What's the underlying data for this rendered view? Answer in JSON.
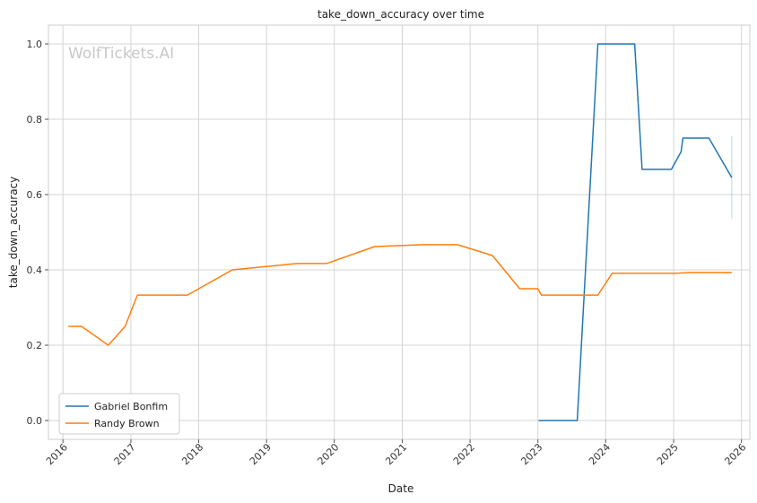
{
  "chart_data": {
    "type": "line",
    "title": "take_down_accuracy over time",
    "xlabel": "Date",
    "ylabel": "take_down_accuracy",
    "watermark": "WolfTickets.AI",
    "xlim": [
      "2015-10-15",
      "2026-02-15"
    ],
    "ylim": [
      -0.05,
      1.05
    ],
    "x_ticks": [
      "2016",
      "2017",
      "2018",
      "2019",
      "2020",
      "2021",
      "2022",
      "2023",
      "2024",
      "2025",
      "2026"
    ],
    "y_ticks": [
      "0.0",
      "0.2",
      "0.4",
      "0.6",
      "0.8",
      "1.0"
    ],
    "grid": true,
    "legend_position": "lower-left",
    "series": [
      {
        "name": "Gabriel Bonfim",
        "color": "#1f77b4",
        "points": [
          [
            "2023-01-05",
            0.0
          ],
          [
            "2023-08-01",
            0.0
          ],
          [
            "2023-11-20",
            1.0
          ],
          [
            "2024-06-05",
            1.0
          ],
          [
            "2024-07-15",
            0.667
          ],
          [
            "2024-12-20",
            0.667
          ],
          [
            "2025-02-10",
            0.714
          ],
          [
            "2025-02-20",
            0.75
          ],
          [
            "2025-07-10",
            0.75
          ],
          [
            "2025-11-10",
            0.645
          ]
        ],
        "error_range": [
          "2025-11-10",
          0.535,
          0.755
        ]
      },
      {
        "name": "Randy Brown",
        "color": "#ff7f0e",
        "points": [
          [
            "2016-01-30",
            0.25
          ],
          [
            "2016-04-10",
            0.25
          ],
          [
            "2016-09-01",
            0.2
          ],
          [
            "2016-12-01",
            0.25
          ],
          [
            "2017-02-05",
            0.333
          ],
          [
            "2017-11-01",
            0.333
          ],
          [
            "2018-07-01",
            0.4
          ],
          [
            "2019-06-15",
            0.417
          ],
          [
            "2019-11-20",
            0.417
          ],
          [
            "2020-08-05",
            0.462
          ],
          [
            "2021-04-25",
            0.467
          ],
          [
            "2021-10-25",
            0.467
          ],
          [
            "2022-05-01",
            0.438
          ],
          [
            "2022-09-25",
            0.35
          ],
          [
            "2023-01-01",
            0.35
          ],
          [
            "2023-01-20",
            0.333
          ],
          [
            "2023-11-20",
            0.333
          ],
          [
            "2024-02-05",
            0.391
          ],
          [
            "2025-01-10",
            0.391
          ],
          [
            "2025-04-01",
            0.393
          ],
          [
            "2025-11-10",
            0.393
          ]
        ]
      }
    ]
  }
}
